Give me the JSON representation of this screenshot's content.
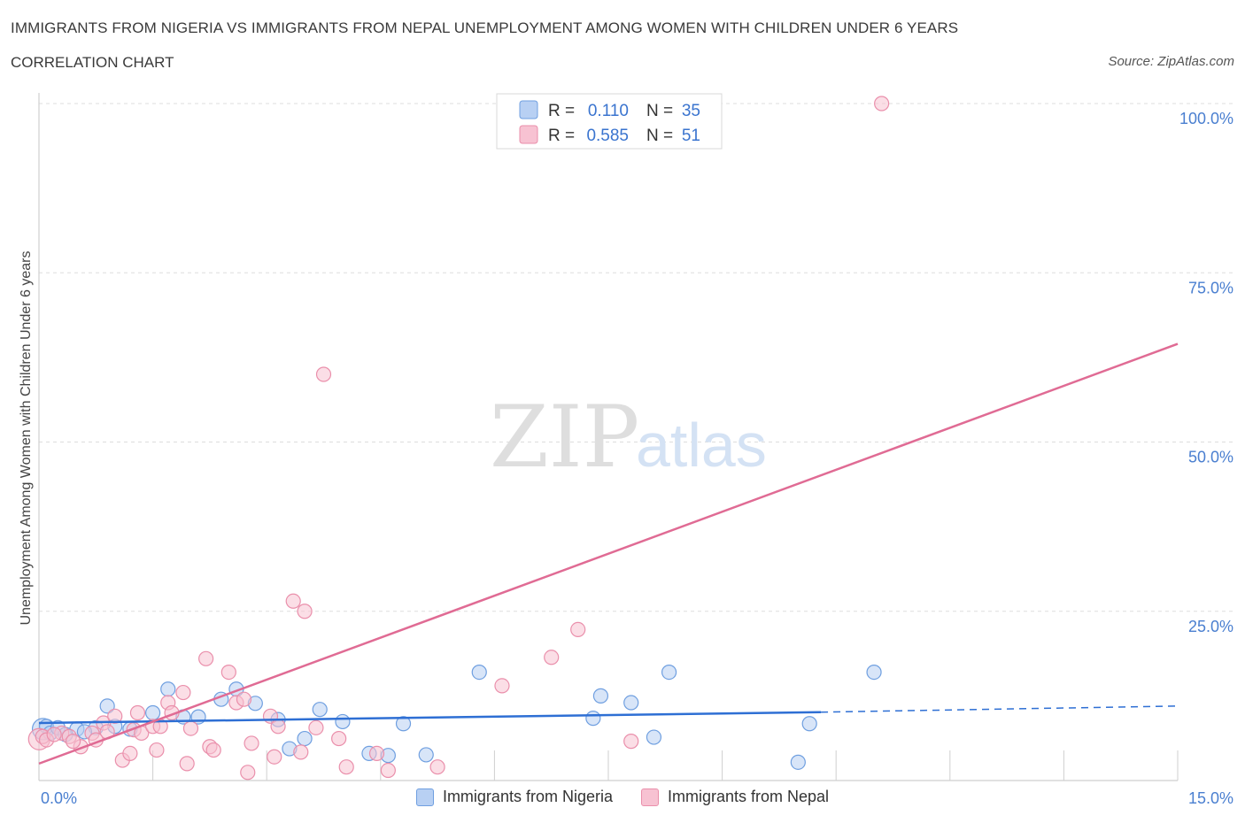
{
  "chart_data": {
    "type": "scatter",
    "title": "IMMIGRANTS FROM NIGERIA VS IMMIGRANTS FROM NEPAL UNEMPLOYMENT AMONG WOMEN WITH CHILDREN UNDER 6 YEARS",
    "subtitle": "CORRELATION CHART",
    "source": "Source: ZipAtlas.com",
    "ylabel": "Unemployment Among Women with Children Under 6 years",
    "xlim": [
      0,
      15
    ],
    "ylim": [
      0,
      100
    ],
    "x_tick_labels": [
      "0.0%",
      "15.0%"
    ],
    "y_tick_labels": [
      "100.0%",
      "75.0%",
      "50.0%",
      "25.0%"
    ],
    "y_ticks": [
      100,
      75,
      50,
      25
    ],
    "grid": true,
    "watermark": {
      "zip": "ZIP",
      "atlas": "atlas"
    },
    "legend_inset": {
      "rows": [
        {
          "r_label": "R =",
          "r_value": "0.110",
          "n_label": "N =",
          "n_value": "35"
        },
        {
          "r_label": "R =",
          "r_value": "0.585",
          "n_label": "N =",
          "n_value": "51"
        }
      ]
    },
    "series": [
      {
        "name": "Immigrants from Nigeria",
        "color": "#6f9fe0",
        "fill": "#b8d0f3",
        "line_color": "#2e6fd4",
        "trend": {
          "x_start": 0,
          "y_start": 8.5,
          "x_solid_end": 10.3,
          "y_solid_end": 10.1,
          "x_end": 15,
          "y_end": 11
        },
        "points": [
          [
            0.1,
            8
          ],
          [
            0.15,
            7
          ],
          [
            0.25,
            7.8
          ],
          [
            0.5,
            7.6
          ],
          [
            0.75,
            7.8
          ],
          [
            0.9,
            11
          ],
          [
            1.2,
            7.6
          ],
          [
            1.5,
            10
          ],
          [
            1.7,
            13.5
          ],
          [
            1.9,
            9.4
          ],
          [
            2.1,
            9.4
          ],
          [
            2.4,
            12
          ],
          [
            2.6,
            13.5
          ],
          [
            2.85,
            11.4
          ],
          [
            3.15,
            9
          ],
          [
            3.3,
            4.7
          ],
          [
            3.5,
            6.2
          ],
          [
            3.7,
            10.5
          ],
          [
            4.0,
            8.7
          ],
          [
            4.35,
            4
          ],
          [
            4.6,
            3.7
          ],
          [
            4.8,
            8.4
          ],
          [
            5.1,
            3.8
          ],
          [
            5.8,
            16
          ],
          [
            7.3,
            9.2
          ],
          [
            7.4,
            12.5
          ],
          [
            7.8,
            11.5
          ],
          [
            8.1,
            6.4
          ],
          [
            8.3,
            16
          ],
          [
            10.0,
            2.7
          ],
          [
            10.15,
            8.4
          ],
          [
            11.0,
            16
          ],
          [
            0.6,
            7.2
          ],
          [
            1.0,
            8
          ],
          [
            0.35,
            6.8
          ]
        ]
      },
      {
        "name": "Immigrants from Nepal",
        "color": "#ea8fab",
        "fill": "#f7c2d2",
        "line_color": "#e06b94",
        "trend": {
          "x_start": 0,
          "y_start": 2.5,
          "x_end": 15,
          "y_end": 64.5
        },
        "points": [
          [
            0.05,
            6.5
          ],
          [
            0.1,
            6
          ],
          [
            0.3,
            7
          ],
          [
            0.4,
            6.5
          ],
          [
            0.55,
            5
          ],
          [
            0.7,
            7
          ],
          [
            0.75,
            6
          ],
          [
            0.85,
            8.5
          ],
          [
            1.0,
            9.5
          ],
          [
            0.9,
            7.2
          ],
          [
            1.1,
            3
          ],
          [
            1.2,
            4
          ],
          [
            1.25,
            7.5
          ],
          [
            1.3,
            10
          ],
          [
            1.35,
            7
          ],
          [
            1.5,
            8
          ],
          [
            1.55,
            4.5
          ],
          [
            1.6,
            8
          ],
          [
            1.7,
            11.5
          ],
          [
            1.75,
            10
          ],
          [
            1.9,
            13
          ],
          [
            1.95,
            2.5
          ],
          [
            2.0,
            7.7
          ],
          [
            2.2,
            18
          ],
          [
            2.25,
            5
          ],
          [
            2.3,
            4.5
          ],
          [
            2.5,
            16
          ],
          [
            2.6,
            11.5
          ],
          [
            2.7,
            12
          ],
          [
            2.75,
            1.2
          ],
          [
            2.8,
            5.5
          ],
          [
            3.05,
            9.5
          ],
          [
            3.15,
            8
          ],
          [
            3.1,
            3.5
          ],
          [
            3.35,
            26.5
          ],
          [
            3.45,
            4.2
          ],
          [
            3.5,
            25
          ],
          [
            3.65,
            7.8
          ],
          [
            3.75,
            60
          ],
          [
            3.95,
            6.2
          ],
          [
            4.05,
            2
          ],
          [
            4.45,
            4
          ],
          [
            4.6,
            1.5
          ],
          [
            5.25,
            2
          ],
          [
            6.1,
            14
          ],
          [
            6.75,
            18.2
          ],
          [
            7.1,
            22.3
          ],
          [
            7.8,
            5.8
          ],
          [
            11.1,
            100
          ],
          [
            0.2,
            6.8
          ],
          [
            0.45,
            5.8
          ]
        ]
      }
    ]
  }
}
